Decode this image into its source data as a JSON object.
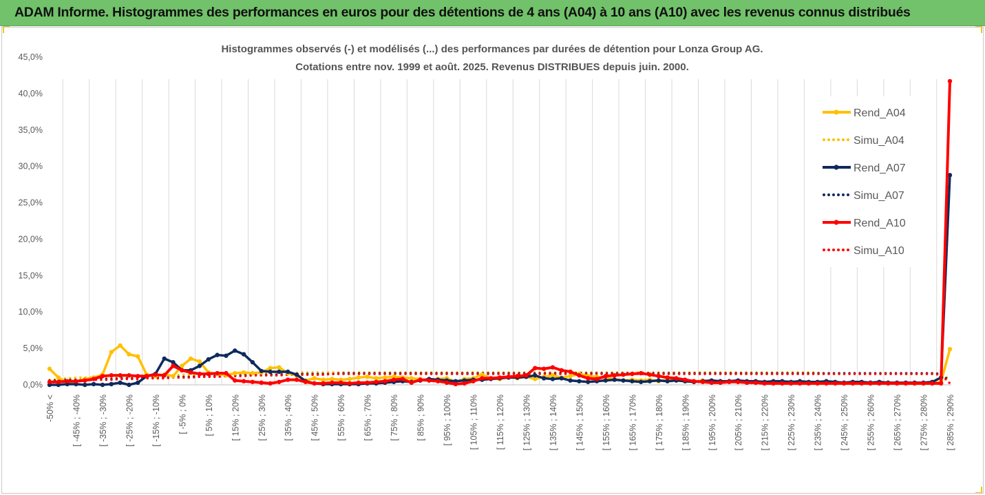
{
  "header": {
    "title": "ADAM Informe. Histogrammes des performances en euros pour des détentions de 4 ans (A04) à 10 ans (A10) avec les revenus connus distribués"
  },
  "colors": {
    "banner": "#71c26a",
    "A04": "#ffc000",
    "A07": "#0e2a5c",
    "A10": "#ff0000",
    "grid": "#d9d9d9"
  },
  "chart_data": {
    "type": "line",
    "title_lines": [
      "Histogrammes observés (-) et modélisés (...) des performances par durées de détention pour Lonza Group AG.",
      "Cotations entre nov. 1999 et août. 2025. Revenus DISTRIBUES depuis juin. 2000."
    ],
    "y_tick_labels": [
      "0,0%",
      "5,0%",
      "10,0%",
      "15,0%",
      "20,0%",
      "25,0%",
      "30,0%",
      "35,0%",
      "40,0%",
      "45,0%"
    ],
    "ylim": [
      0,
      45
    ],
    "grid": "vertical",
    "legend_position": "right",
    "x_tick_labels": [
      "-50% <",
      "[ -45% ; -40%",
      "[ -35% ; -30%",
      "[ -25% ; -20%",
      "[ -15% ; -10%",
      "[ -5% ; 0%",
      "[ 5% ; 10%",
      "[ 15% ; 20%",
      "[ 25% ; 30%",
      "[ 35% ; 40%",
      "[ 45% ; 50%",
      "[ 55% ; 60%",
      "[ 65% ; 70%",
      "[ 75% ; 80%",
      "[ 85% ; 90%",
      "[ 95% ; 100%",
      "[ 105% ; 110%",
      "[ 115% ; 120%",
      "[ 125% ; 130%",
      "[ 135% ; 140%",
      "[ 145% ; 150%",
      "[ 155% ; 160%",
      "[ 165% ; 170%",
      "[ 175% ; 180%",
      "[ 185% ; 190%",
      "[ 195% ; 200%",
      "[ 205% ; 210%",
      "[ 215% ; 220%",
      "[ 225% ; 230%",
      "[ 235% ; 240%",
      "[ 245% ; 250%",
      "[ 255% ; 260%",
      "[ 265% ; 270%",
      "[ 275% ; 280%",
      "[ 285% ; 290%"
    ],
    "series": [
      {
        "name": "Rend_A04",
        "style": "solid",
        "color": "#ffc000",
        "values": [
          2.2,
          1.0,
          0.3,
          0.5,
          0.8,
          1.0,
          1.4,
          4.5,
          5.4,
          4.2,
          3.9,
          1.4,
          1.2,
          1.4,
          1.2,
          2.6,
          3.6,
          3.2,
          1.7,
          1.5,
          1.3,
          1.6,
          1.7,
          1.6,
          1.7,
          2.3,
          2.4,
          1.6,
          1.3,
          0.6,
          0.9,
          0.7,
          0.8,
          0.7,
          0.8,
          1.0,
          1.1,
          0.9,
          1.0,
          1.1,
          1.0,
          0.9,
          0.8,
          0.6,
          0.8,
          0.9,
          0.4,
          0.8,
          0.9,
          1.4,
          0.9,
          0.8,
          1.1,
          0.9,
          1.1,
          0.8,
          1.1,
          1.3,
          1.0,
          1.2,
          1.5,
          1.2,
          1.1,
          0.9,
          0.8,
          0.6,
          0.7,
          0.6,
          0.7,
          0.5,
          0.7,
          0.6,
          0.5,
          0.4,
          0.6,
          0.5,
          0.4,
          0.5,
          0.4,
          0.3,
          0.4,
          0.3,
          0.3,
          0.2,
          0.2,
          0.2,
          0.2,
          0.2,
          0.5,
          0.3,
          0.3,
          0.4,
          0.3,
          0.3,
          0.3,
          0.3,
          0.2,
          0.2,
          0.2,
          0.2,
          0.2,
          0.4,
          4.9
        ]
      },
      {
        "name": "Simu_A04",
        "style": "dotted",
        "color": "#ffc000",
        "values": [
          0.7,
          0.8,
          0.9,
          1.0,
          1.0,
          1.0,
          1.1,
          1.1,
          1.1,
          1.2,
          1.2,
          1.2,
          1.3,
          1.3,
          1.3,
          1.4,
          1.4,
          1.4,
          1.5,
          1.5,
          1.5,
          1.5,
          1.6,
          1.6,
          1.6,
          1.6,
          1.6,
          1.6,
          1.7,
          1.7,
          1.7,
          1.7,
          1.7,
          1.7,
          1.7,
          1.7,
          1.7,
          1.7,
          1.7,
          1.7,
          1.7,
          1.7,
          1.7,
          1.7,
          1.7,
          1.7,
          1.7,
          1.7,
          1.7,
          1.7,
          1.7,
          1.7,
          1.7,
          1.7,
          1.7,
          1.7,
          1.7,
          1.7,
          1.7,
          1.7,
          1.7,
          1.7,
          1.7,
          1.7,
          1.7,
          1.7,
          1.7,
          1.7,
          1.7,
          1.7,
          1.7,
          1.7,
          1.7,
          1.7,
          1.7,
          1.7,
          1.7,
          1.7,
          1.7,
          1.7,
          1.7,
          1.7,
          1.7,
          1.7,
          1.7,
          1.7,
          1.6,
          1.6,
          1.6,
          1.6,
          1.6,
          1.6,
          1.6,
          1.6,
          1.6,
          1.5,
          1.5,
          1.5,
          1.5,
          1.4,
          0.8
        ]
      },
      {
        "name": "Rend_A07",
        "style": "solid",
        "color": "#0e2a5c",
        "values": [
          0.0,
          0.0,
          0.1,
          0.1,
          0.0,
          0.1,
          0.0,
          0.1,
          0.3,
          0.0,
          0.3,
          1.2,
          1.5,
          3.6,
          3.1,
          2.0,
          2.0,
          2.6,
          3.5,
          4.1,
          4.0,
          4.7,
          4.2,
          3.1,
          1.9,
          1.8,
          1.8,
          1.8,
          1.4,
          0.5,
          0.2,
          0.1,
          0.1,
          0.1,
          0.1,
          0.1,
          0.2,
          0.2,
          0.3,
          0.4,
          0.5,
          0.4,
          0.6,
          0.8,
          0.7,
          0.6,
          0.5,
          0.6,
          0.7,
          0.7,
          0.8,
          0.9,
          1.0,
          1.0,
          1.1,
          1.3,
          0.9,
          0.8,
          0.9,
          0.6,
          0.5,
          0.4,
          0.5,
          0.6,
          0.7,
          0.6,
          0.5,
          0.4,
          0.5,
          0.6,
          0.5,
          0.6,
          0.5,
          0.4,
          0.5,
          0.6,
          0.5,
          0.5,
          0.6,
          0.5,
          0.5,
          0.4,
          0.5,
          0.5,
          0.4,
          0.5,
          0.4,
          0.4,
          0.5,
          0.4,
          0.3,
          0.4,
          0.4,
          0.3,
          0.4,
          0.3,
          0.3,
          0.3,
          0.3,
          0.3,
          0.4,
          1.0,
          28.8
        ]
      },
      {
        "name": "Simu_A07",
        "style": "dotted",
        "color": "#0e2a5c",
        "values": [
          0.6,
          0.6,
          0.7,
          0.7,
          0.7,
          0.8,
          0.8,
          0.8,
          0.9,
          0.9,
          0.9,
          1.0,
          1.0,
          1.0,
          1.1,
          1.1,
          1.1,
          1.2,
          1.2,
          1.2,
          1.3,
          1.3,
          1.3,
          1.4,
          1.4,
          1.4,
          1.4,
          1.5,
          1.5,
          1.5,
          1.5,
          1.5,
          1.5,
          1.6,
          1.6,
          1.6,
          1.6,
          1.6,
          1.6,
          1.6,
          1.6,
          1.6,
          1.6,
          1.6,
          1.6,
          1.6,
          1.6,
          1.6,
          1.6,
          1.6,
          1.6,
          1.6,
          1.6,
          1.6,
          1.6,
          1.6,
          1.6,
          1.6,
          1.6,
          1.6,
          1.6,
          1.6,
          1.6,
          1.6,
          1.6,
          1.6,
          1.6,
          1.6,
          1.6,
          1.6,
          1.6,
          1.6,
          1.6,
          1.6,
          1.6,
          1.6,
          1.6,
          1.6,
          1.6,
          1.6,
          1.6,
          1.6,
          1.6,
          1.6,
          1.6,
          1.6,
          1.6,
          1.6,
          1.6,
          1.6,
          1.6,
          1.6,
          1.6,
          1.6,
          1.6,
          1.6,
          1.6,
          1.6,
          1.6,
          1.6,
          1.6,
          1.5,
          0.5
        ]
      },
      {
        "name": "Rend_A10",
        "style": "solid",
        "color": "#ff0000",
        "values": [
          0.4,
          0.4,
          0.5,
          0.5,
          0.6,
          0.8,
          1.2,
          1.3,
          1.3,
          1.3,
          1.2,
          1.2,
          1.4,
          1.3,
          2.6,
          2.0,
          1.7,
          1.5,
          1.5,
          1.6,
          1.6,
          0.6,
          0.5,
          0.4,
          0.3,
          0.2,
          0.4,
          0.7,
          0.7,
          0.4,
          0.2,
          0.2,
          0.3,
          0.3,
          0.2,
          0.3,
          0.3,
          0.4,
          0.5,
          0.7,
          0.8,
          0.3,
          0.7,
          0.6,
          0.5,
          0.3,
          0.1,
          0.2,
          0.5,
          0.9,
          0.9,
          1.0,
          1.1,
          1.2,
          1.3,
          2.3,
          2.2,
          2.4,
          2.0,
          1.8,
          1.3,
          0.9,
          0.8,
          1.2,
          1.3,
          1.4,
          1.5,
          1.6,
          1.4,
          1.2,
          1.0,
          0.9,
          0.7,
          0.5,
          0.4,
          0.3,
          0.3,
          0.4,
          0.4,
          0.3,
          0.3,
          0.2,
          0.2,
          0.2,
          0.2,
          0.2,
          0.2,
          0.2,
          0.2,
          0.2,
          0.2,
          0.2,
          0.2,
          0.2,
          0.2,
          0.2,
          0.2,
          0.2,
          0.2,
          0.2,
          0.2,
          0.2,
          41.7
        ]
      },
      {
        "name": "Simu_A10",
        "style": "dotted",
        "color": "#ff0000",
        "values": [
          0.5,
          0.5,
          0.6,
          0.6,
          0.6,
          0.7,
          0.7,
          0.7,
          0.8,
          0.8,
          0.8,
          0.9,
          0.9,
          0.9,
          1.0,
          1.0,
          1.0,
          1.1,
          1.1,
          1.1,
          1.2,
          1.2,
          1.2,
          1.3,
          1.3,
          1.3,
          1.3,
          1.4,
          1.4,
          1.4,
          1.4,
          1.4,
          1.5,
          1.5,
          1.5,
          1.5,
          1.5,
          1.5,
          1.5,
          1.5,
          1.5,
          1.5,
          1.5,
          1.5,
          1.5,
          1.5,
          1.5,
          1.5,
          1.5,
          1.5,
          1.5,
          1.5,
          1.5,
          1.5,
          1.5,
          1.5,
          1.5,
          1.5,
          1.5,
          1.5,
          1.5,
          1.5,
          1.5,
          1.5,
          1.5,
          1.5,
          1.5,
          1.5,
          1.5,
          1.5,
          1.5,
          1.5,
          1.5,
          1.5,
          1.5,
          1.5,
          1.5,
          1.5,
          1.5,
          1.5,
          1.5,
          1.5,
          1.5,
          1.5,
          1.5,
          1.5,
          1.5,
          1.5,
          1.5,
          1.5,
          1.5,
          1.5,
          1.5,
          1.5,
          1.5,
          1.5,
          1.5,
          1.5,
          1.5,
          1.5,
          1.5,
          1.4,
          0.2
        ]
      }
    ]
  }
}
